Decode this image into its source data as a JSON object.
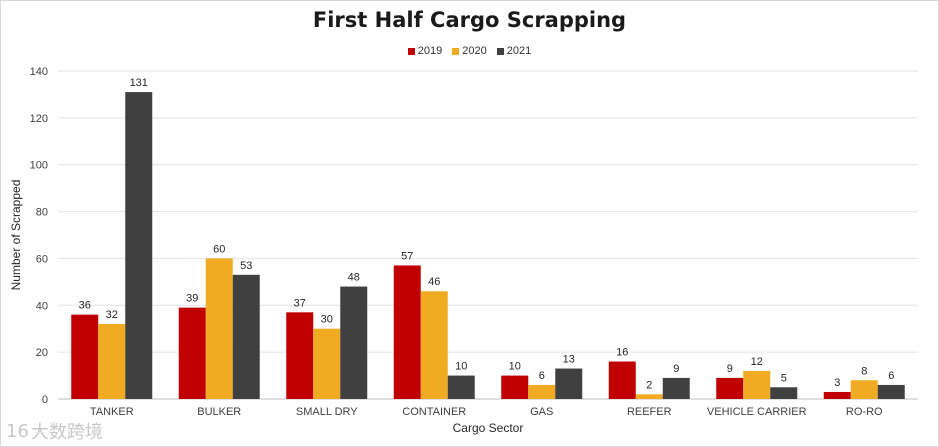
{
  "chart_data": {
    "type": "bar",
    "title": "First Half Cargo Scrapping",
    "xlabel": "Cargo Sector",
    "ylabel": "Number of Scrapped",
    "ylim": [
      0,
      140
    ],
    "yticks": [
      0,
      20,
      40,
      60,
      80,
      100,
      120,
      140
    ],
    "categories": [
      "TANKER",
      "BULKER",
      "SMALL DRY",
      "CONTAINER",
      "GAS",
      "REEFER",
      "VEHICLE CARRIER",
      "RO-RO"
    ],
    "series": [
      {
        "name": "2019",
        "color": "#c00000",
        "values": [
          36,
          39,
          37,
          57,
          10,
          16,
          9,
          3
        ]
      },
      {
        "name": "2020",
        "color": "#f0ab23",
        "values": [
          32,
          60,
          30,
          46,
          6,
          2,
          12,
          8
        ]
      },
      {
        "name": "2021",
        "color": "#404040",
        "values": [
          131,
          53,
          48,
          10,
          13,
          9,
          5,
          6
        ]
      }
    ],
    "legend_position": "top-center",
    "grid": true
  },
  "watermark": {
    "text": "大数跨境",
    "logo": "16"
  }
}
